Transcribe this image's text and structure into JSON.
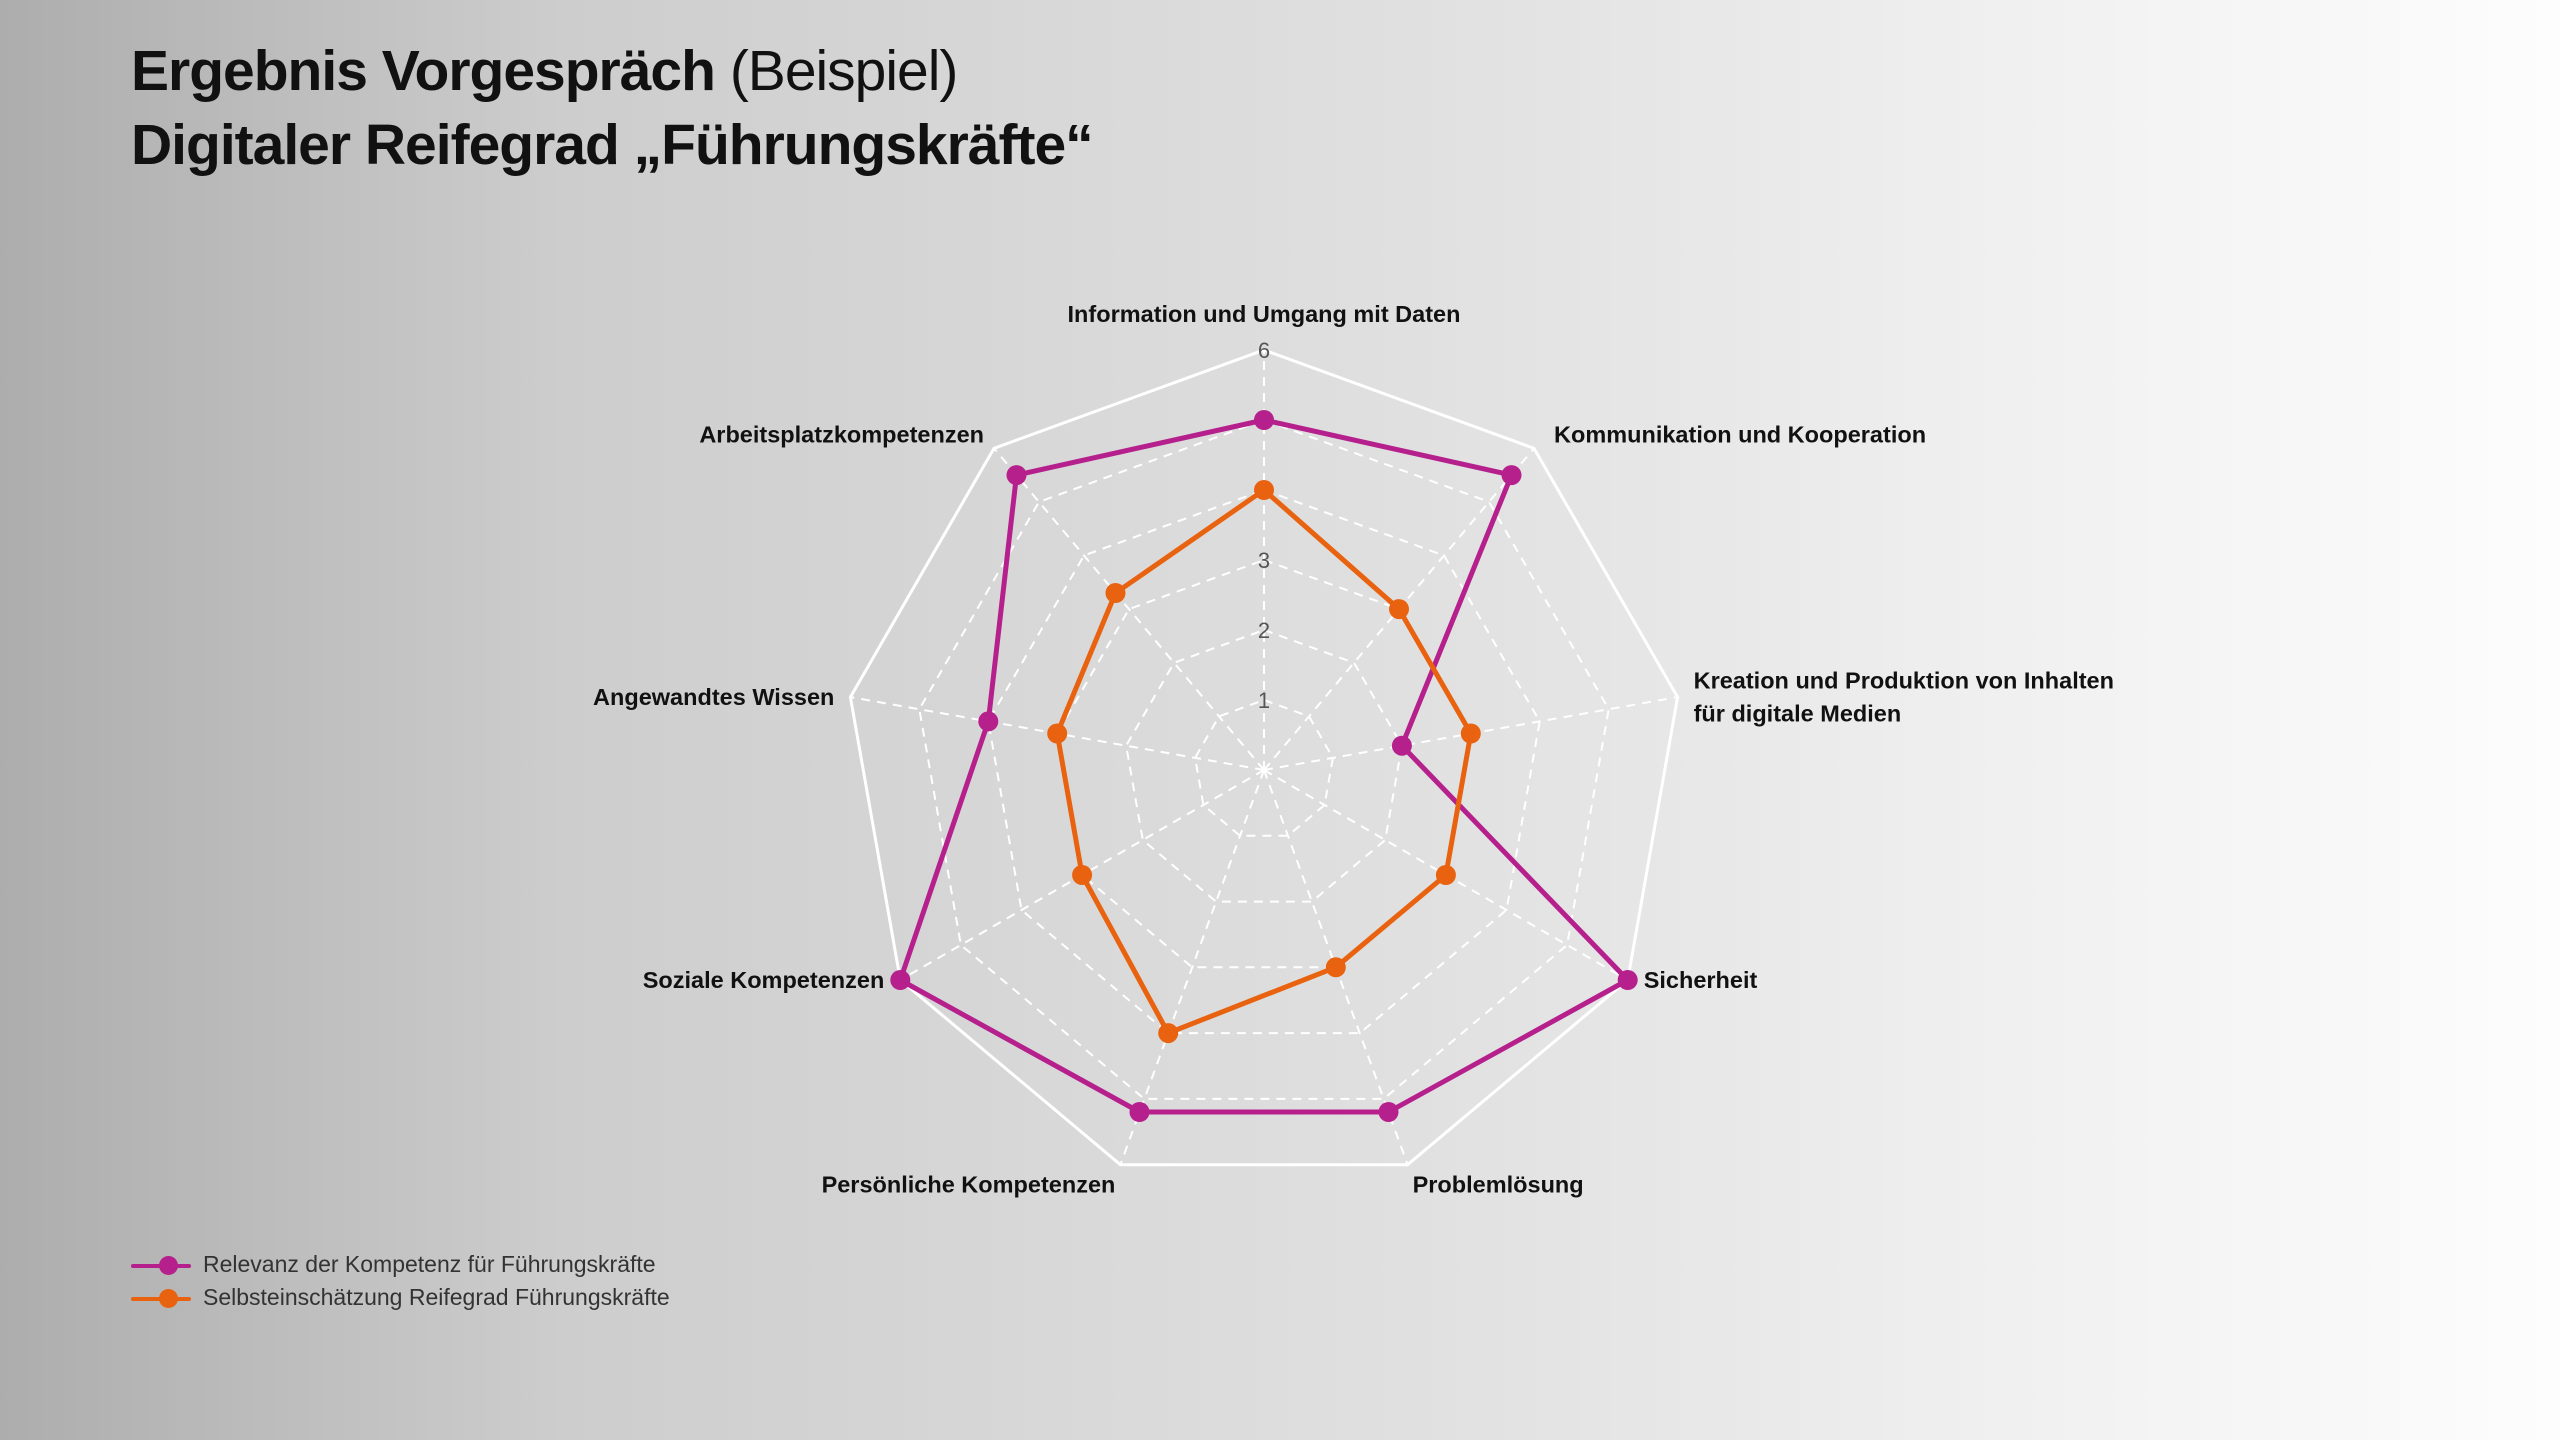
{
  "title": {
    "line1_bold": "Ergebnis Vorgespräch",
    "line1_light": "(Beispiel)",
    "line2": "Digitaler Reifegrad „Führungskräfte“"
  },
  "colors": {
    "relevanz": "#b5208c",
    "selbst": "#e8620f",
    "grid": "#ffffff"
  },
  "chart_data": {
    "type": "radar",
    "categories": [
      "Information und Umgang mit Daten",
      "Kommunikation und Kooperation",
      "Kreation und Produktion von Inhalten für digitale Medien",
      "Sicherheit",
      "Problemlösung",
      "Persönliche Kompetenzen",
      "Soziale Kompetenzen",
      "Angewandtes Wissen",
      "Arbeitsplatzkompetenzen"
    ],
    "category_label_lines": [
      [
        "Information und Umgang mit Daten"
      ],
      [
        "Kommunikation und Kooperation"
      ],
      [
        "Kreation und Produktion von Inhalten",
        "für digitale Medien"
      ],
      [
        "Sicherheit"
      ],
      [
        "Problemlösung"
      ],
      [
        "Persönliche Kompetenzen"
      ],
      [
        "Soziale Kompetenzen"
      ],
      [
        "Angewandtes Wissen"
      ],
      [
        "Arbeitsplatzkompetenzen"
      ]
    ],
    "range": [
      0,
      6
    ],
    "ticks": [
      1,
      2,
      3,
      4,
      5,
      6
    ],
    "series": [
      {
        "name": "Relevanz der Kompetenz für Führungskräfte",
        "color": "#b5208c",
        "values": [
          5,
          5.5,
          2,
          6,
          5.2,
          5.2,
          6,
          4,
          5.5
        ]
      },
      {
        "name": "Selbsteinschätzung Reifegrad Führungskräfte",
        "color": "#e8620f",
        "values": [
          4,
          3,
          3,
          3,
          3,
          4,
          3,
          3,
          3.3
        ]
      }
    ],
    "legend_position": "bottom-left",
    "grid": true
  }
}
